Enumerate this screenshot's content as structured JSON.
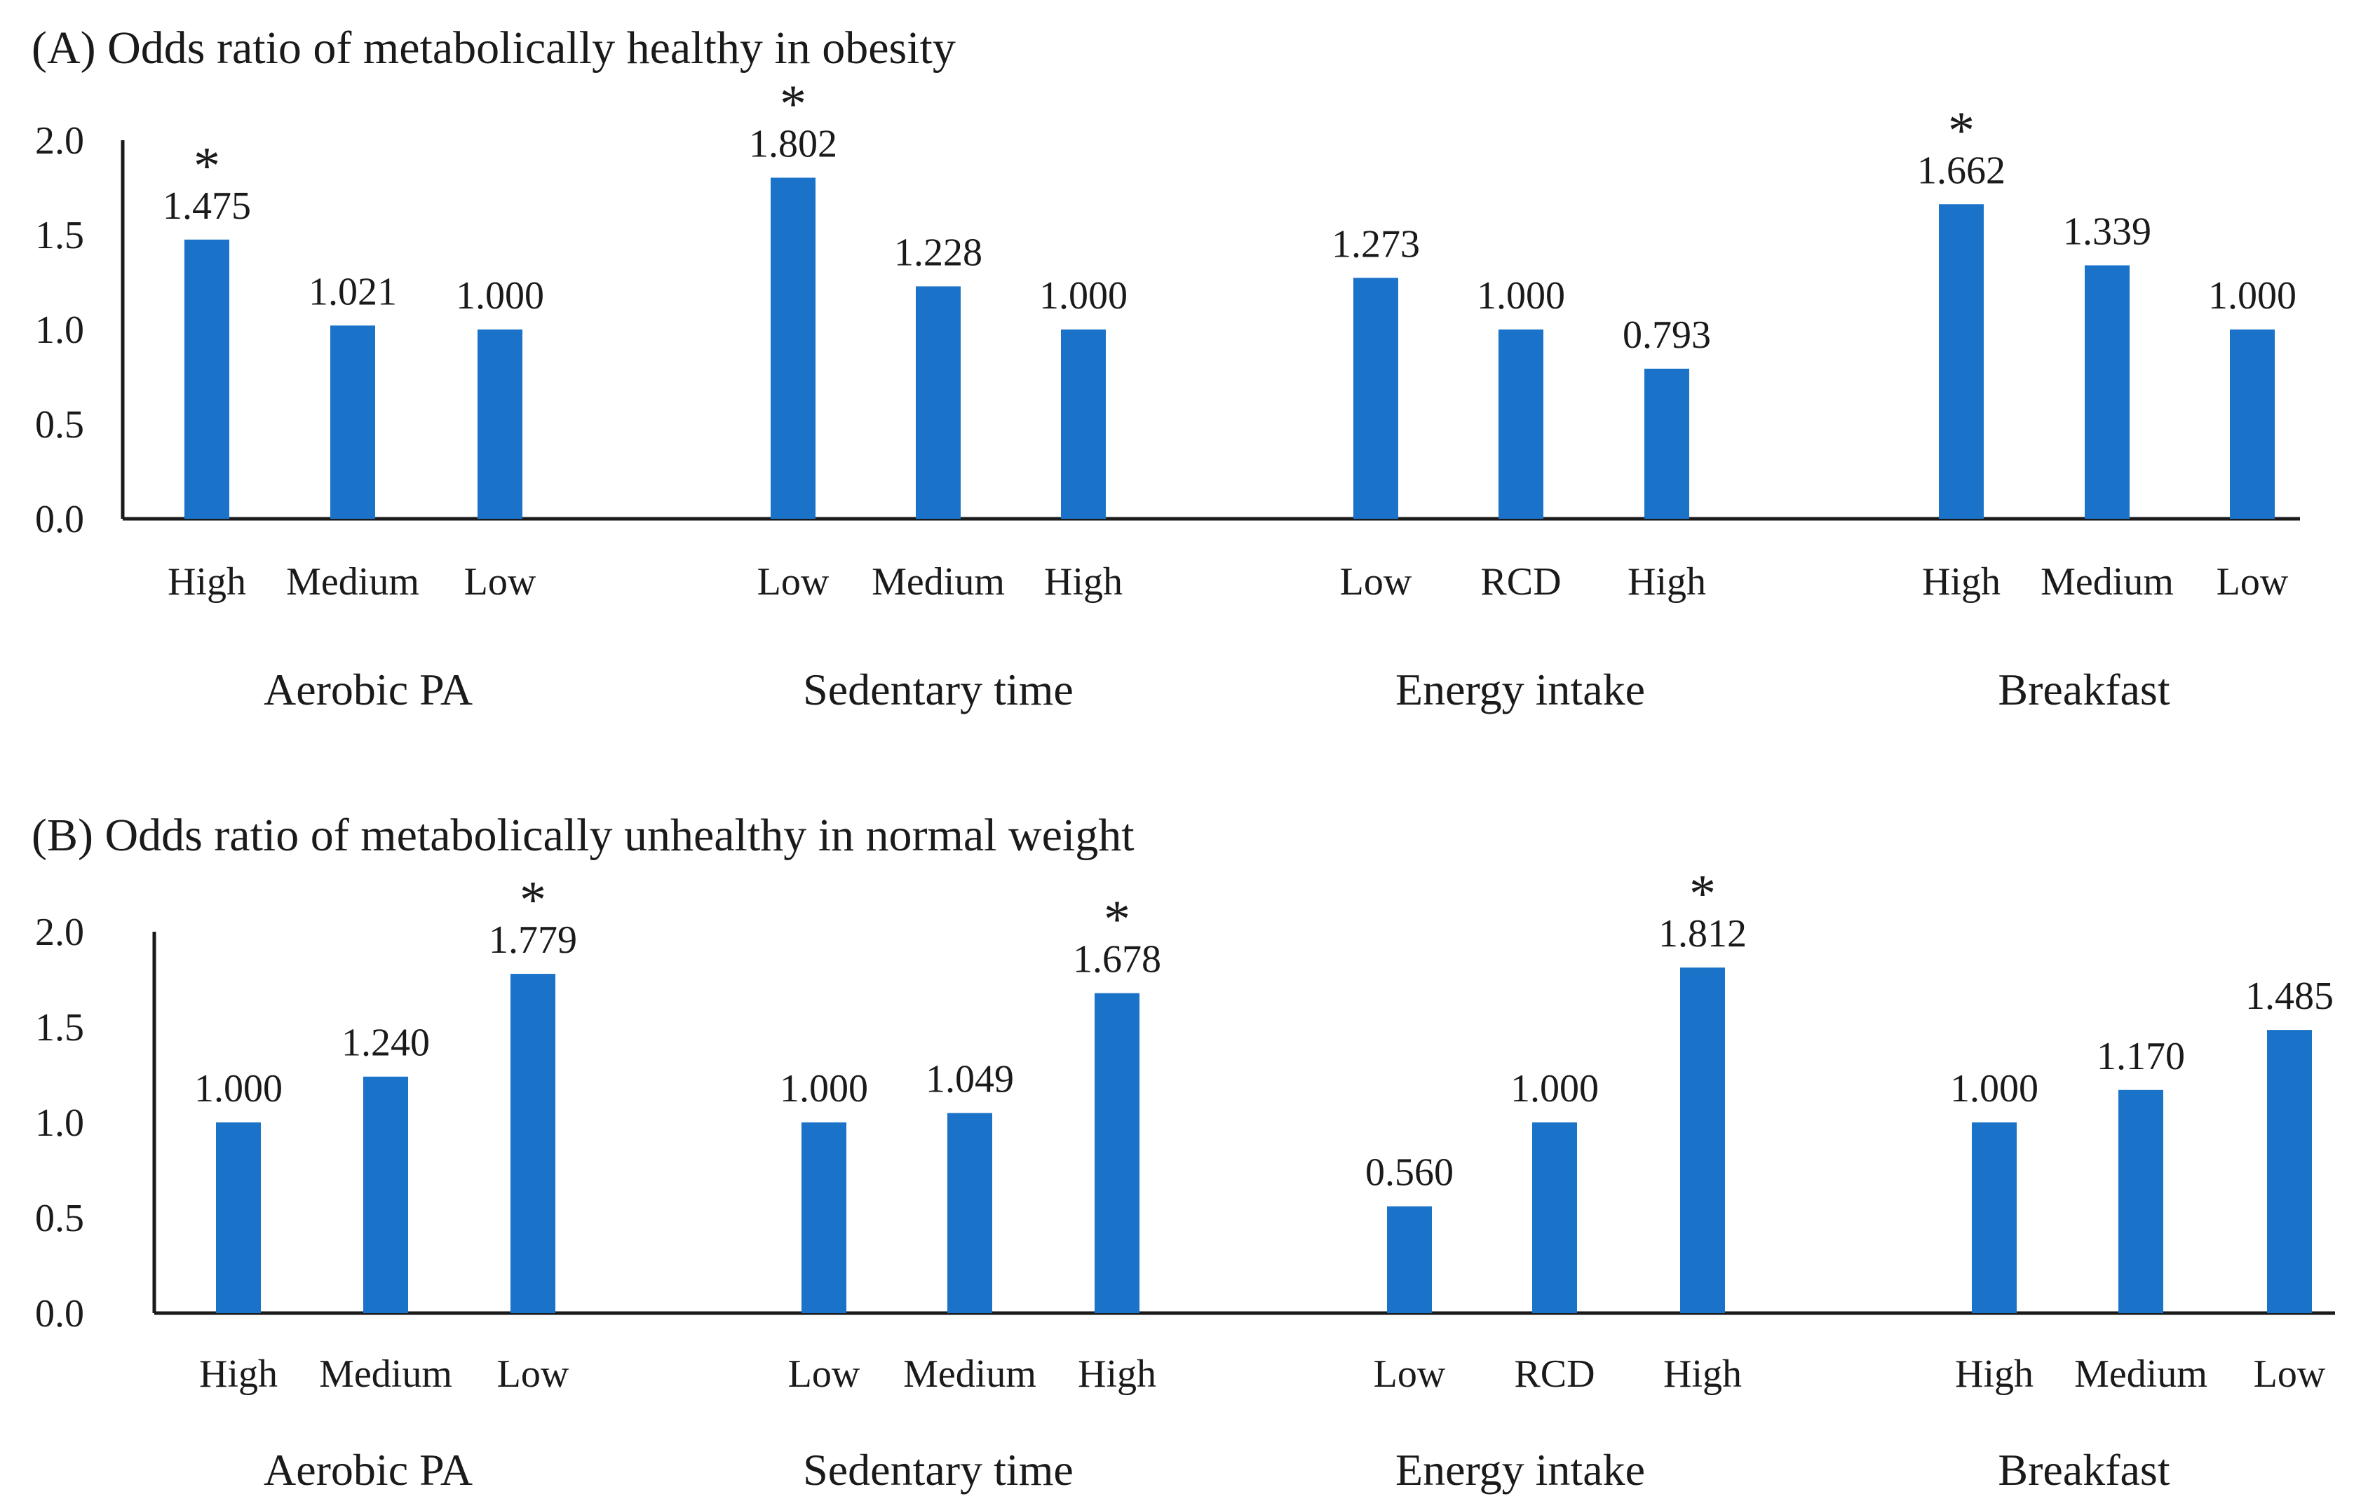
{
  "chart_data": [
    {
      "type": "bar",
      "title": "(A) Odds ratio of  metabolically healthy in obesity",
      "ylim": [
        0,
        2.0
      ],
      "yticks": [
        "0.0",
        "0.5",
        "1.0",
        "1.5",
        "2.0"
      ],
      "bar_color": "#1a73c8",
      "groups": [
        {
          "name": "Aerobic PA",
          "categories": [
            "High",
            "Medium",
            "Low"
          ],
          "values": [
            1.475,
            1.021,
            1.0
          ],
          "labels": [
            "1.475",
            "1.021",
            "1.000"
          ],
          "significant": [
            true,
            false,
            false
          ]
        },
        {
          "name": "Sedentary time",
          "categories": [
            "Low",
            "Medium",
            "High"
          ],
          "values": [
            1.802,
            1.228,
            1.0
          ],
          "labels": [
            "1.802",
            "1.228",
            "1.000"
          ],
          "significant": [
            true,
            false,
            false
          ]
        },
        {
          "name": "Energy  intake",
          "categories": [
            "Low",
            "RCD",
            "High"
          ],
          "values": [
            1.273,
            1.0,
            0.793
          ],
          "labels": [
            "1.273",
            "1.000",
            "0.793"
          ],
          "significant": [
            false,
            false,
            false
          ]
        },
        {
          "name": "Breakfast",
          "categories": [
            "High",
            "Medium",
            "Low"
          ],
          "values": [
            1.662,
            1.339,
            1.0
          ],
          "labels": [
            "1.662",
            "1.339",
            "1.000"
          ],
          "significant": [
            true,
            false,
            false
          ]
        }
      ]
    },
    {
      "type": "bar",
      "title": "(B) Odds ratio of metabolically unhealthy in normal weight",
      "ylim": [
        0,
        2.0
      ],
      "yticks": [
        "0.0",
        "0.5",
        "1.0",
        "1.5",
        "2.0"
      ],
      "bar_color": "#1a73c8",
      "groups": [
        {
          "name": "Aerobic PA",
          "categories": [
            "High",
            "Medium",
            "Low"
          ],
          "values": [
            1.0,
            1.24,
            1.779
          ],
          "labels": [
            "1.000",
            "1.240",
            "1.779"
          ],
          "significant": [
            false,
            false,
            true
          ]
        },
        {
          "name": "Sedentary time",
          "categories": [
            "Low",
            "Medium",
            "High"
          ],
          "values": [
            1.0,
            1.049,
            1.678
          ],
          "labels": [
            "1.000",
            "1.049",
            "1.678"
          ],
          "significant": [
            false,
            false,
            true
          ]
        },
        {
          "name": "Energy  intake",
          "categories": [
            "Low",
            "RCD",
            "High"
          ],
          "values": [
            0.56,
            1.0,
            1.812
          ],
          "labels": [
            "0.560",
            "1.000",
            "1.812"
          ],
          "significant": [
            false,
            false,
            true
          ]
        },
        {
          "name": "Breakfast",
          "categories": [
            "High",
            "Medium",
            "Low"
          ],
          "values": [
            1.0,
            1.17,
            1.485
          ],
          "labels": [
            "1.000",
            "1.170",
            "1.485"
          ],
          "significant": [
            false,
            false,
            false
          ]
        }
      ]
    }
  ],
  "significance_marker": "*"
}
